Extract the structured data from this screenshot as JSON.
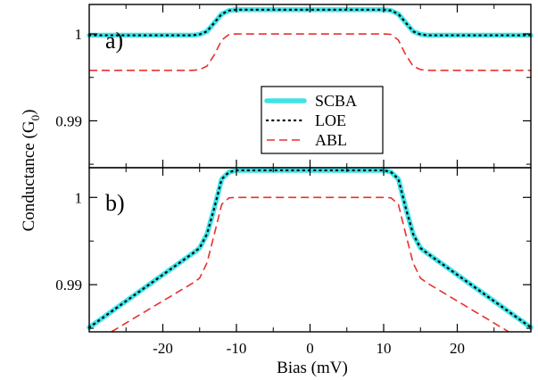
{
  "chart_data": [
    {
      "panel": "a)",
      "type": "line",
      "xlabel": "Bias (mV)",
      "ylabel": "Conductance (G",
      "ylabel_sub": "0",
      "ylabel_close": ")",
      "xlim": [
        -30,
        30
      ],
      "ylim": [
        0.9846,
        1.0034
      ],
      "xticks": [
        -20,
        -10,
        0,
        10,
        20
      ],
      "yticks": [
        0.99,
        1
      ],
      "ytick_labels": [
        "0.99",
        "1"
      ],
      "legend": {
        "placement": "center",
        "entries": [
          "SCBA",
          "LOE",
          "ABL"
        ]
      },
      "series": [
        {
          "name": "SCBA",
          "color": "#3fe3e6",
          "style": "thick-solid",
          "x": [
            -30,
            -16,
            -15,
            -14,
            -13,
            -12,
            -11,
            -10,
            0,
            10,
            11,
            12,
            13,
            14,
            15,
            16,
            30
          ],
          "y": [
            0.99985,
            0.99985,
            0.99995,
            1.0003,
            1.0013,
            1.0023,
            1.0027,
            1.0028,
            1.0028,
            1.0028,
            1.0027,
            1.0023,
            1.0013,
            1.0003,
            0.99995,
            0.99985,
            0.99985
          ]
        },
        {
          "name": "LOE",
          "color": "#000000",
          "style": "dotted",
          "x": [
            -30,
            -16,
            -15,
            -14,
            -13,
            -12,
            -11,
            -10,
            0,
            10,
            11,
            12,
            13,
            14,
            15,
            16,
            30
          ],
          "y": [
            0.99985,
            0.99985,
            0.99995,
            1.0003,
            1.0013,
            1.0023,
            1.0027,
            1.0028,
            1.0028,
            1.0028,
            1.0027,
            1.0023,
            1.0013,
            1.0003,
            0.99995,
            0.99985,
            0.99985
          ]
        },
        {
          "name": "ABL",
          "color": "#e8302e",
          "style": "dashed",
          "x": [
            -30,
            -16,
            -15,
            -14,
            -13,
            -12,
            -11,
            -10,
            0,
            10,
            11,
            12,
            13,
            14,
            15,
            16,
            30
          ],
          "y": [
            0.9958,
            0.9958,
            0.9959,
            0.9963,
            0.9976,
            0.9993,
            0.99995,
            1.0,
            1.0,
            1.0,
            0.99995,
            0.9993,
            0.9976,
            0.9963,
            0.9959,
            0.9958,
            0.9958
          ]
        }
      ]
    },
    {
      "panel": "b)",
      "type": "line",
      "xlim": [
        -30,
        30
      ],
      "ylim": [
        0.9846,
        1.0034
      ],
      "xticks": [
        -20,
        -10,
        0,
        10,
        20
      ],
      "yticks": [
        0.99,
        1
      ],
      "ytick_labels": [
        "0.99",
        "1"
      ],
      "xtick_labels": [
        "-20",
        "-10",
        "0",
        "10",
        "20"
      ],
      "series": [
        {
          "name": "SCBA",
          "color": "#3fe3e6",
          "style": "thick-solid",
          "x": [
            -30,
            -16,
            -15,
            -14,
            -13,
            -12,
            -11,
            -10,
            0,
            10,
            11,
            12,
            13,
            14,
            15,
            16,
            30
          ],
          "y": [
            0.9851,
            0.99355,
            0.9942,
            0.9958,
            0.9988,
            1.0021,
            1.0029,
            1.0031,
            1.0031,
            1.0031,
            1.0029,
            1.0021,
            0.9988,
            0.9958,
            0.9942,
            0.99355,
            0.9851
          ]
        },
        {
          "name": "LOE",
          "color": "#000000",
          "style": "dotted",
          "x": [
            -30,
            -16,
            -15,
            -14,
            -13,
            -12,
            -11,
            -10,
            0,
            10,
            11,
            12,
            13,
            14,
            15,
            16,
            30
          ],
          "y": [
            0.9851,
            0.99355,
            0.9942,
            0.9958,
            0.9988,
            1.0021,
            1.0029,
            1.0031,
            1.0031,
            1.0031,
            1.0029,
            1.0021,
            0.9988,
            0.9958,
            0.9942,
            0.99355,
            0.9851
          ]
        },
        {
          "name": "ABL",
          "color": "#e8302e",
          "style": "dashed",
          "x": [
            -27,
            -16,
            -15,
            -14,
            -13,
            -12,
            -11,
            -10,
            0,
            10,
            11,
            12,
            13,
            14,
            15,
            16,
            27
          ],
          "y": [
            0.9846,
            0.99015,
            0.99075,
            0.9925,
            0.9958,
            0.9992,
            0.99995,
            1.0,
            1.0,
            1.0,
            0.99995,
            0.9992,
            0.9958,
            0.9925,
            0.99075,
            0.99015,
            0.9846
          ]
        }
      ]
    }
  ]
}
